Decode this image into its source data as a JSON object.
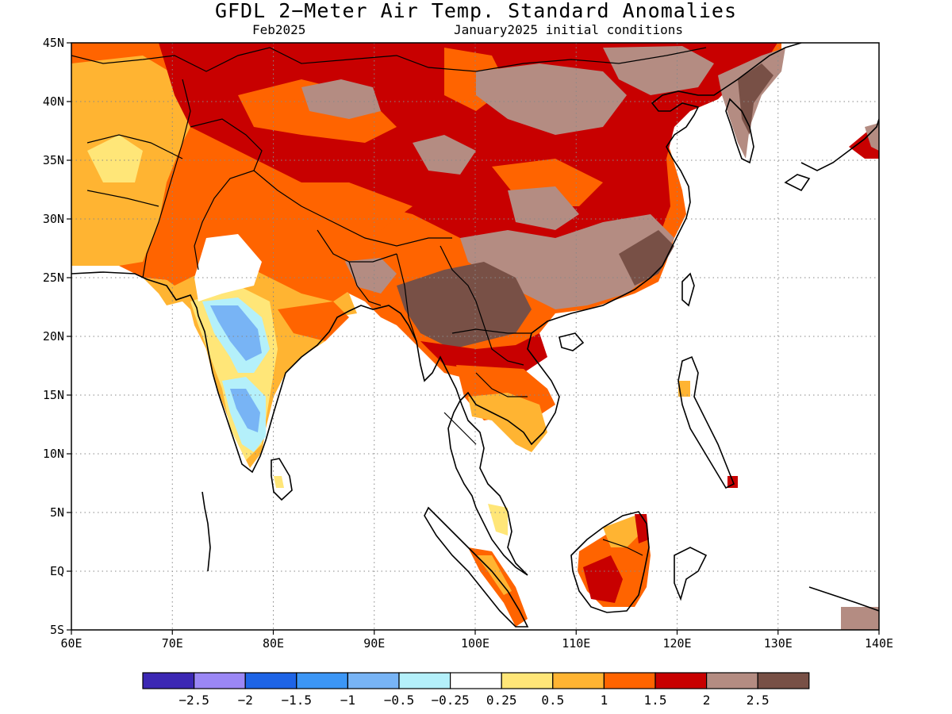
{
  "title": "GFDL 2−Meter Air Temp. Standard Anomalies",
  "subtitle_left": "Feb2025",
  "subtitle_right": "January2025 initial conditions",
  "map": {
    "lon_range": [
      60,
      140
    ],
    "lat_range": [
      -5,
      45
    ],
    "x_ticks": [
      {
        "value": 60,
        "label": "60E"
      },
      {
        "value": 70,
        "label": "70E"
      },
      {
        "value": 80,
        "label": "80E"
      },
      {
        "value": 90,
        "label": "90E"
      },
      {
        "value": 100,
        "label": "100E"
      },
      {
        "value": 110,
        "label": "110E"
      },
      {
        "value": 120,
        "label": "120E"
      },
      {
        "value": 130,
        "label": "130E"
      },
      {
        "value": 140,
        "label": "140E"
      }
    ],
    "y_ticks": [
      {
        "value": 45,
        "label": "45N"
      },
      {
        "value": 40,
        "label": "40N"
      },
      {
        "value": 35,
        "label": "35N"
      },
      {
        "value": 30,
        "label": "30N"
      },
      {
        "value": 25,
        "label": "25N"
      },
      {
        "value": 20,
        "label": "20N"
      },
      {
        "value": 15,
        "label": "15N"
      },
      {
        "value": 10,
        "label": "10N"
      },
      {
        "value": 5,
        "label": "5N"
      },
      {
        "value": 0,
        "label": "EQ"
      },
      {
        "value": -5,
        "label": "5S"
      }
    ],
    "grid": "dotted"
  },
  "colorbar": {
    "colors": [
      "#3c28b4",
      "#9b87f5",
      "#1e64e6",
      "#3c96f5",
      "#78b4f5",
      "#b4f0fa",
      "#ffffff",
      "#ffe678",
      "#ffb432",
      "#ff6400",
      "#c80000",
      "#b48c82",
      "#785046"
    ],
    "labels": [
      "−2.5",
      "−2",
      "−1.5",
      "−1",
      "−0.5",
      "−0.25",
      "0.25",
      "0.5",
      "1",
      "1.5",
      "2",
      "2.5"
    ]
  }
}
